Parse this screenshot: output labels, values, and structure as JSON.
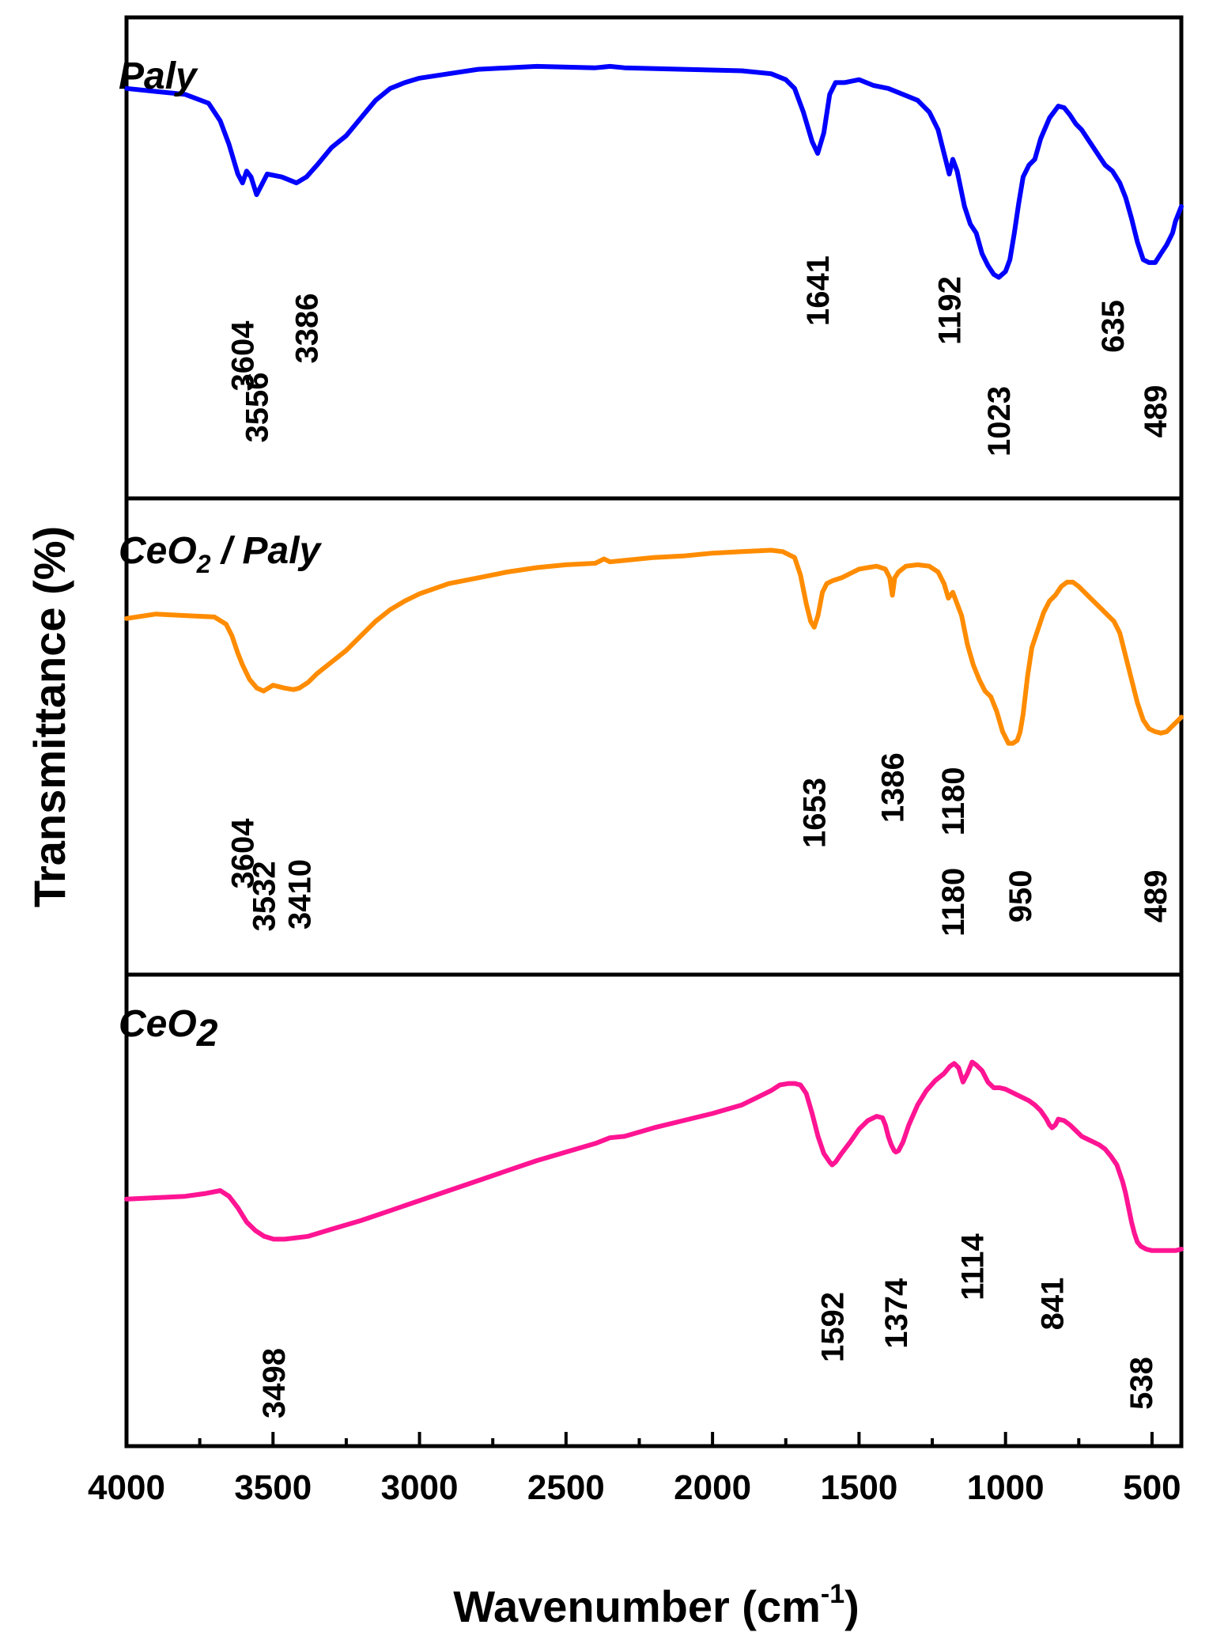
{
  "chart_data": {
    "type": "line",
    "title": "",
    "xlabel": "Wavenumber (cm",
    "xlabel_sup": "-1",
    "xlabel_close": ")",
    "ylabel": "Transmittance (%)",
    "xlim": [
      4000,
      400
    ],
    "xticks": [
      "4000",
      "3500",
      "3000",
      "2500",
      "2000",
      "1500",
      "1000",
      "500"
    ],
    "grid": false,
    "series": [
      {
        "name": "Paly",
        "label_parts": [
          {
            "t": "Paly",
            "sub": false
          }
        ],
        "color": "#0000FF",
        "ylim": [
          0,
          100
        ],
        "x": [
          4000,
          3900,
          3800,
          3720,
          3680,
          3650,
          3620,
          3604,
          3590,
          3575,
          3556,
          3520,
          3470,
          3420,
          3386,
          3350,
          3300,
          3250,
          3200,
          3150,
          3100,
          3050,
          3000,
          2900,
          2800,
          2600,
          2400,
          2350,
          2300,
          2100,
          1900,
          1800,
          1750,
          1720,
          1690,
          1660,
          1641,
          1620,
          1600,
          1580,
          1550,
          1500,
          1450,
          1400,
          1350,
          1300,
          1260,
          1230,
          1210,
          1192,
          1180,
          1165,
          1140,
          1120,
          1100,
          1080,
          1060,
          1040,
          1023,
          1000,
          985,
          970,
          955,
          940,
          920,
          900,
          880,
          850,
          820,
          800,
          780,
          760,
          740,
          720,
          700,
          680,
          660,
          635,
          610,
          590,
          570,
          550,
          530,
          510,
          489,
          470,
          450,
          430,
          420,
          400
        ],
        "y": [
          92,
          91,
          90,
          87,
          81,
          73,
          63,
          60,
          64,
          62,
          56,
          63,
          62,
          60,
          62,
          66,
          72,
          76,
          82,
          88,
          92,
          94,
          95.5,
          97,
          98.5,
          99.5,
          99,
          99.5,
          99,
          98.5,
          98,
          97,
          95,
          92,
          84,
          74,
          70,
          77,
          90,
          94,
          94,
          95,
          93,
          92,
          90,
          88,
          84,
          78,
          70,
          63,
          68,
          64,
          52,
          46,
          43,
          36,
          32,
          29,
          28,
          30,
          34,
          43,
          53,
          62,
          66,
          68,
          75,
          82,
          86,
          85.5,
          83,
          80,
          78,
          75,
          72,
          69,
          66,
          64,
          60,
          55,
          48,
          40,
          34,
          33,
          33,
          36,
          39,
          43,
          47,
          52
        ]
      },
      {
        "name": "CeO2 / Paly",
        "label_parts": [
          {
            "t": "CeO",
            "sub": false
          },
          {
            "t": "2",
            "sub": true
          },
          {
            "t": " / Paly",
            "sub": false
          }
        ],
        "color": "#FF8C00",
        "ylim": [
          0,
          100
        ],
        "x": [
          4000,
          3900,
          3800,
          3700,
          3660,
          3640,
          3620,
          3604,
          3580,
          3555,
          3532,
          3500,
          3460,
          3430,
          3410,
          3380,
          3350,
          3300,
          3250,
          3200,
          3150,
          3100,
          3050,
          3000,
          2900,
          2800,
          2700,
          2600,
          2500,
          2400,
          2370,
          2350,
          2300,
          2200,
          2100,
          2000,
          1900,
          1800,
          1760,
          1720,
          1700,
          1680,
          1665,
          1653,
          1640,
          1625,
          1610,
          1590,
          1560,
          1530,
          1500,
          1470,
          1440,
          1410,
          1395,
          1386,
          1378,
          1365,
          1340,
          1300,
          1260,
          1230,
          1210,
          1195,
          1180,
          1165,
          1150,
          1130,
          1110,
          1090,
          1070,
          1050,
          1030,
          1010,
          990,
          975,
          960,
          950,
          940,
          925,
          910,
          890,
          870,
          850,
          830,
          810,
          790,
          770,
          750,
          730,
          710,
          690,
          670,
          650,
          630,
          610,
          590,
          570,
          550,
          530,
          510,
          489,
          470,
          450,
          430,
          410,
          400
        ],
        "y": [
          75,
          76.5,
          76,
          75.5,
          73,
          69,
          63,
          59,
          54,
          51,
          50,
          52,
          51,
          50.5,
          51,
          53,
          56,
          60,
          64,
          69,
          74,
          78,
          81,
          83.5,
          87,
          89,
          91,
          92.5,
          93.5,
          94,
          95.5,
          94.5,
          95,
          96,
          96.5,
          97.5,
          98,
          98.5,
          98,
          96,
          90,
          80,
          74,
          72,
          76,
          84,
          87,
          88,
          89,
          90.5,
          92,
          92.5,
          93,
          92,
          89,
          83,
          89,
          91,
          93,
          93.5,
          93,
          91,
          87,
          82,
          84,
          80,
          76,
          66,
          59,
          54,
          50,
          48,
          43,
          36,
          32,
          32,
          33,
          36,
          42,
          55,
          65,
          71,
          77,
          81,
          83,
          86,
          87.5,
          87.5,
          86,
          84,
          82,
          80,
          78,
          76,
          74,
          70,
          62,
          54,
          46,
          40,
          37,
          36,
          35.5,
          36,
          38,
          40,
          41
        ]
      },
      {
        "name": "CeO2",
        "label_parts": [
          {
            "t": "CeO",
            "sub": false
          },
          {
            "t": "2",
            "sub": true
          }
        ],
        "color": "#FF1493",
        "ylim": [
          0,
          100
        ],
        "x": [
          4000,
          3900,
          3800,
          3730,
          3680,
          3650,
          3620,
          3590,
          3560,
          3530,
          3498,
          3460,
          3420,
          3380,
          3300,
          3200,
          3100,
          3000,
          2900,
          2800,
          2700,
          2600,
          2500,
          2400,
          2350,
          2300,
          2200,
          2100,
          2000,
          1900,
          1850,
          1800,
          1770,
          1740,
          1720,
          1700,
          1680,
          1660,
          1640,
          1620,
          1600,
          1592,
          1580,
          1560,
          1530,
          1500,
          1470,
          1440,
          1420,
          1410,
          1400,
          1390,
          1380,
          1374,
          1365,
          1350,
          1330,
          1300,
          1270,
          1240,
          1210,
          1190,
          1175,
          1160,
          1145,
          1130,
          1114,
          1100,
          1080,
          1060,
          1040,
          1020,
          1000,
          980,
          960,
          940,
          920,
          900,
          880,
          860,
          850,
          841,
          830,
          820,
          800,
          780,
          760,
          740,
          720,
          700,
          680,
          660,
          640,
          620,
          600,
          590,
          580,
          570,
          560,
          550,
          538,
          520,
          500,
          480,
          460,
          440,
          420,
          400
        ],
        "y": [
          38,
          38.5,
          39,
          40,
          41,
          39,
          35,
          30,
          27,
          25,
          24,
          24,
          24.5,
          25,
          27.5,
          30.5,
          34,
          37.5,
          41,
          44.5,
          48,
          51.5,
          54.5,
          57.5,
          59.5,
          60,
          63,
          65.5,
          68,
          71,
          73.5,
          76,
          78,
          78.5,
          78.5,
          78,
          75,
          68,
          60,
          54,
          51,
          50,
          51,
          54,
          58,
          62.5,
          65.5,
          67,
          66.5,
          64,
          60,
          57,
          55,
          54.5,
          55,
          58,
          64,
          71,
          76,
          79.5,
          82,
          84.5,
          85.5,
          84,
          79,
          82,
          86,
          85,
          83,
          79,
          77,
          77,
          76.5,
          75.5,
          74.5,
          73.5,
          72.5,
          71,
          69,
          66,
          64,
          63,
          64,
          66,
          65.5,
          64,
          62,
          60,
          59,
          58,
          57,
          55.5,
          53,
          50,
          44,
          40,
          35,
          30,
          26,
          23,
          21.5,
          20.5,
          20,
          20,
          20,
          20,
          20,
          20.5
        ]
      }
    ],
    "annotations": [
      {
        "panel": 0,
        "wn": 3604,
        "text": "3604",
        "label_y": 0.48
      },
      {
        "panel": 0,
        "wn": 3556,
        "text": "3556",
        "label_y": 0.22
      },
      {
        "panel": 0,
        "wn": 3386,
        "text": "3386",
        "label_y": 0.62
      },
      {
        "panel": 0,
        "wn": 1641,
        "text": "1641",
        "label_y": 0.81
      },
      {
        "panel": 0,
        "wn": 1192,
        "text": "1192",
        "label_y": 0.71
      },
      {
        "panel": 0,
        "wn": 1023,
        "text": "1023",
        "label_y": 0.15
      },
      {
        "panel": 0,
        "wn": 635,
        "text": "635",
        "label_y": 0.63
      },
      {
        "panel": 0,
        "wn": 489,
        "text": "489",
        "label_y": 0.2
      },
      {
        "panel": 1,
        "wn": 3604,
        "text": "3604",
        "label_y": 0.4
      },
      {
        "panel": 1,
        "wn": 3532,
        "text": "3532",
        "label_y": 0.18
      },
      {
        "panel": 1,
        "wn": 3410,
        "text": "3410",
        "label_y": 0.19
      },
      {
        "panel": 1,
        "wn": 1653,
        "text": "1653",
        "label_y": 0.61
      },
      {
        "panel": 1,
        "wn": 1386,
        "text": "1386",
        "label_y": 0.74
      },
      {
        "panel": 1,
        "wn": 1180,
        "text": "1180",
        "label_y": 0.67
      },
      {
        "panel": 1,
        "wn": 1180,
        "text": "1180",
        "label_y": 0.15
      },
      {
        "panel": 1,
        "wn": 950,
        "text": "950",
        "label_y": 0.18
      },
      {
        "panel": 1,
        "wn": 489,
        "text": "489",
        "label_y": 0.18
      },
      {
        "panel": 2,
        "wn": 3498,
        "text": "3498",
        "label_y": 0.1
      },
      {
        "panel": 2,
        "wn": 1592,
        "text": "1592",
        "label_y": 0.39
      },
      {
        "panel": 2,
        "wn": 1374,
        "text": "1374",
        "label_y": 0.46
      },
      {
        "panel": 2,
        "wn": 1114,
        "text": "1114",
        "label_y": 0.7
      },
      {
        "panel": 2,
        "wn": 841,
        "text": "841",
        "label_y": 0.51
      },
      {
        "panel": 2,
        "wn": 538,
        "text": "538",
        "label_y": 0.1
      }
    ]
  }
}
